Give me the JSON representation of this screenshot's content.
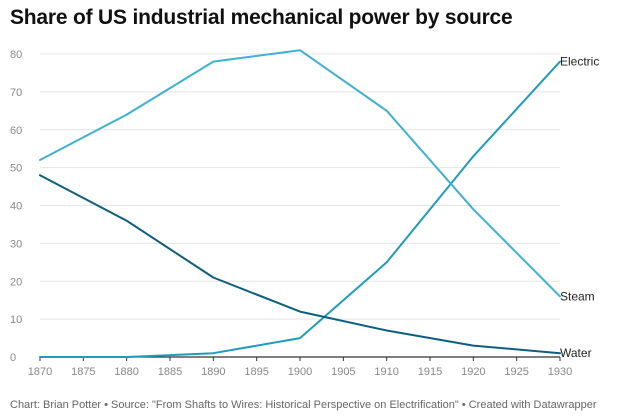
{
  "title": "Share of US industrial mechanical power by source",
  "footer": "Chart: Brian Potter • Source: \"From Shafts to Wires: Historical Perspective on Electrification\" • Created with Datawrapper",
  "chart_data": {
    "type": "line",
    "x": [
      1870,
      1880,
      1890,
      1900,
      1910,
      1920,
      1930
    ],
    "x_ticks": [
      1870,
      1875,
      1880,
      1885,
      1890,
      1895,
      1900,
      1905,
      1910,
      1915,
      1920,
      1925,
      1930
    ],
    "y_ticks": [
      0,
      10,
      20,
      30,
      40,
      50,
      60,
      70,
      80
    ],
    "xlim": [
      1870,
      1930
    ],
    "ylim": [
      0,
      80
    ],
    "grid": true,
    "series": [
      {
        "name": "Electric",
        "color": "#1f9bbd",
        "values": [
          0,
          0,
          1,
          5,
          25,
          53,
          78
        ]
      },
      {
        "name": "Steam",
        "color": "#3fb0d6",
        "values": [
          52,
          64,
          78,
          81,
          65,
          39,
          16
        ]
      },
      {
        "name": "Water",
        "color": "#0d5f80",
        "values": [
          48,
          36,
          21,
          12,
          7,
          3,
          1
        ]
      }
    ]
  }
}
